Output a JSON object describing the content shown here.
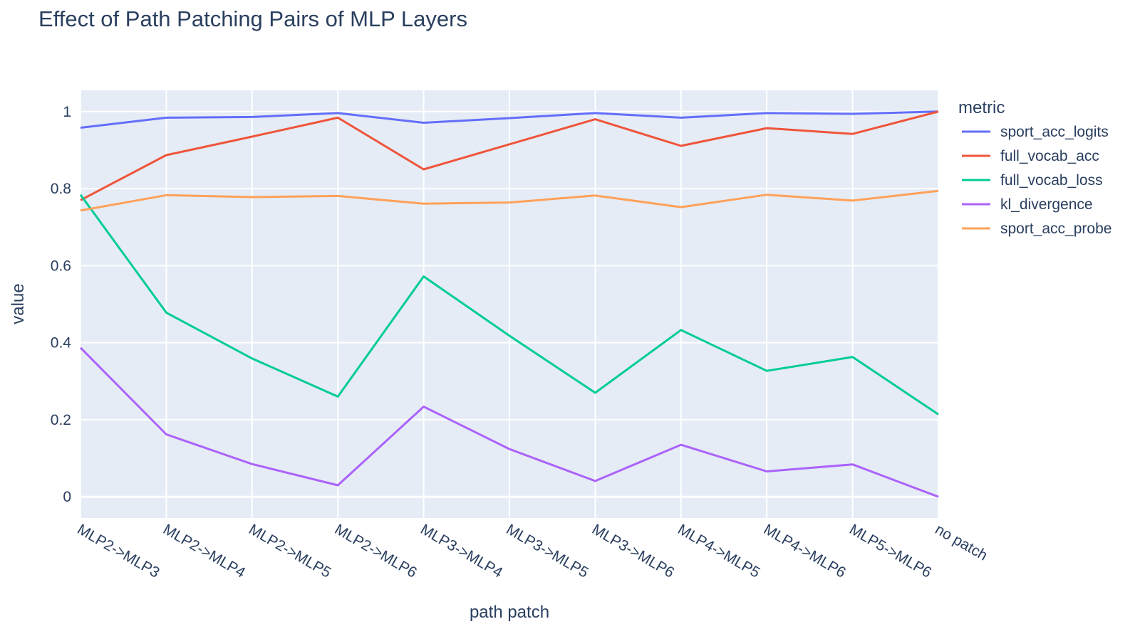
{
  "chart_data": {
    "type": "line",
    "title": "Effect of Path Patching Pairs of MLP Layers",
    "xlabel": "path patch",
    "ylabel": "value",
    "legend_title": "metric",
    "legend_position": "right",
    "grid": true,
    "ylim": [
      -0.055,
      1.055
    ],
    "yticks": [
      "0",
      "0.2",
      "0.4",
      "0.6",
      "0.8",
      "1"
    ],
    "categories": [
      "MLP2->MLP3",
      "MLP2->MLP4",
      "MLP2->MLP5",
      "MLP2->MLP6",
      "MLP3->MLP4",
      "MLP3->MLP5",
      "MLP3->MLP6",
      "MLP4->MLP5",
      "MLP4->MLP6",
      "MLP5->MLP6",
      "no patch"
    ],
    "series": [
      {
        "name": "sport_acc_logits",
        "color": "#636efa",
        "values": [
          0.958,
          0.984,
          0.986,
          0.996,
          0.971,
          0.983,
          0.996,
          0.984,
          0.996,
          0.994,
          1.0
        ]
      },
      {
        "name": "full_vocab_acc",
        "color": "#ef553b",
        "values": [
          0.77,
          0.887,
          0.935,
          0.984,
          0.85,
          0.915,
          0.98,
          0.911,
          0.957,
          0.942,
          1.0
        ]
      },
      {
        "name": "full_vocab_loss",
        "color": "#00cc96",
        "values": [
          0.784,
          0.478,
          0.359,
          0.26,
          0.572,
          0.418,
          0.27,
          0.433,
          0.327,
          0.363,
          0.214
        ]
      },
      {
        "name": "kl_divergence",
        "color": "#ab63fa",
        "values": [
          0.387,
          0.162,
          0.085,
          0.03,
          0.234,
          0.124,
          0.041,
          0.135,
          0.066,
          0.084,
          0.0
        ]
      },
      {
        "name": "sport_acc_probe",
        "color": "#ffa15a",
        "values": [
          0.743,
          0.783,
          0.778,
          0.781,
          0.761,
          0.764,
          0.782,
          0.752,
          0.784,
          0.769,
          0.794
        ]
      }
    ]
  }
}
